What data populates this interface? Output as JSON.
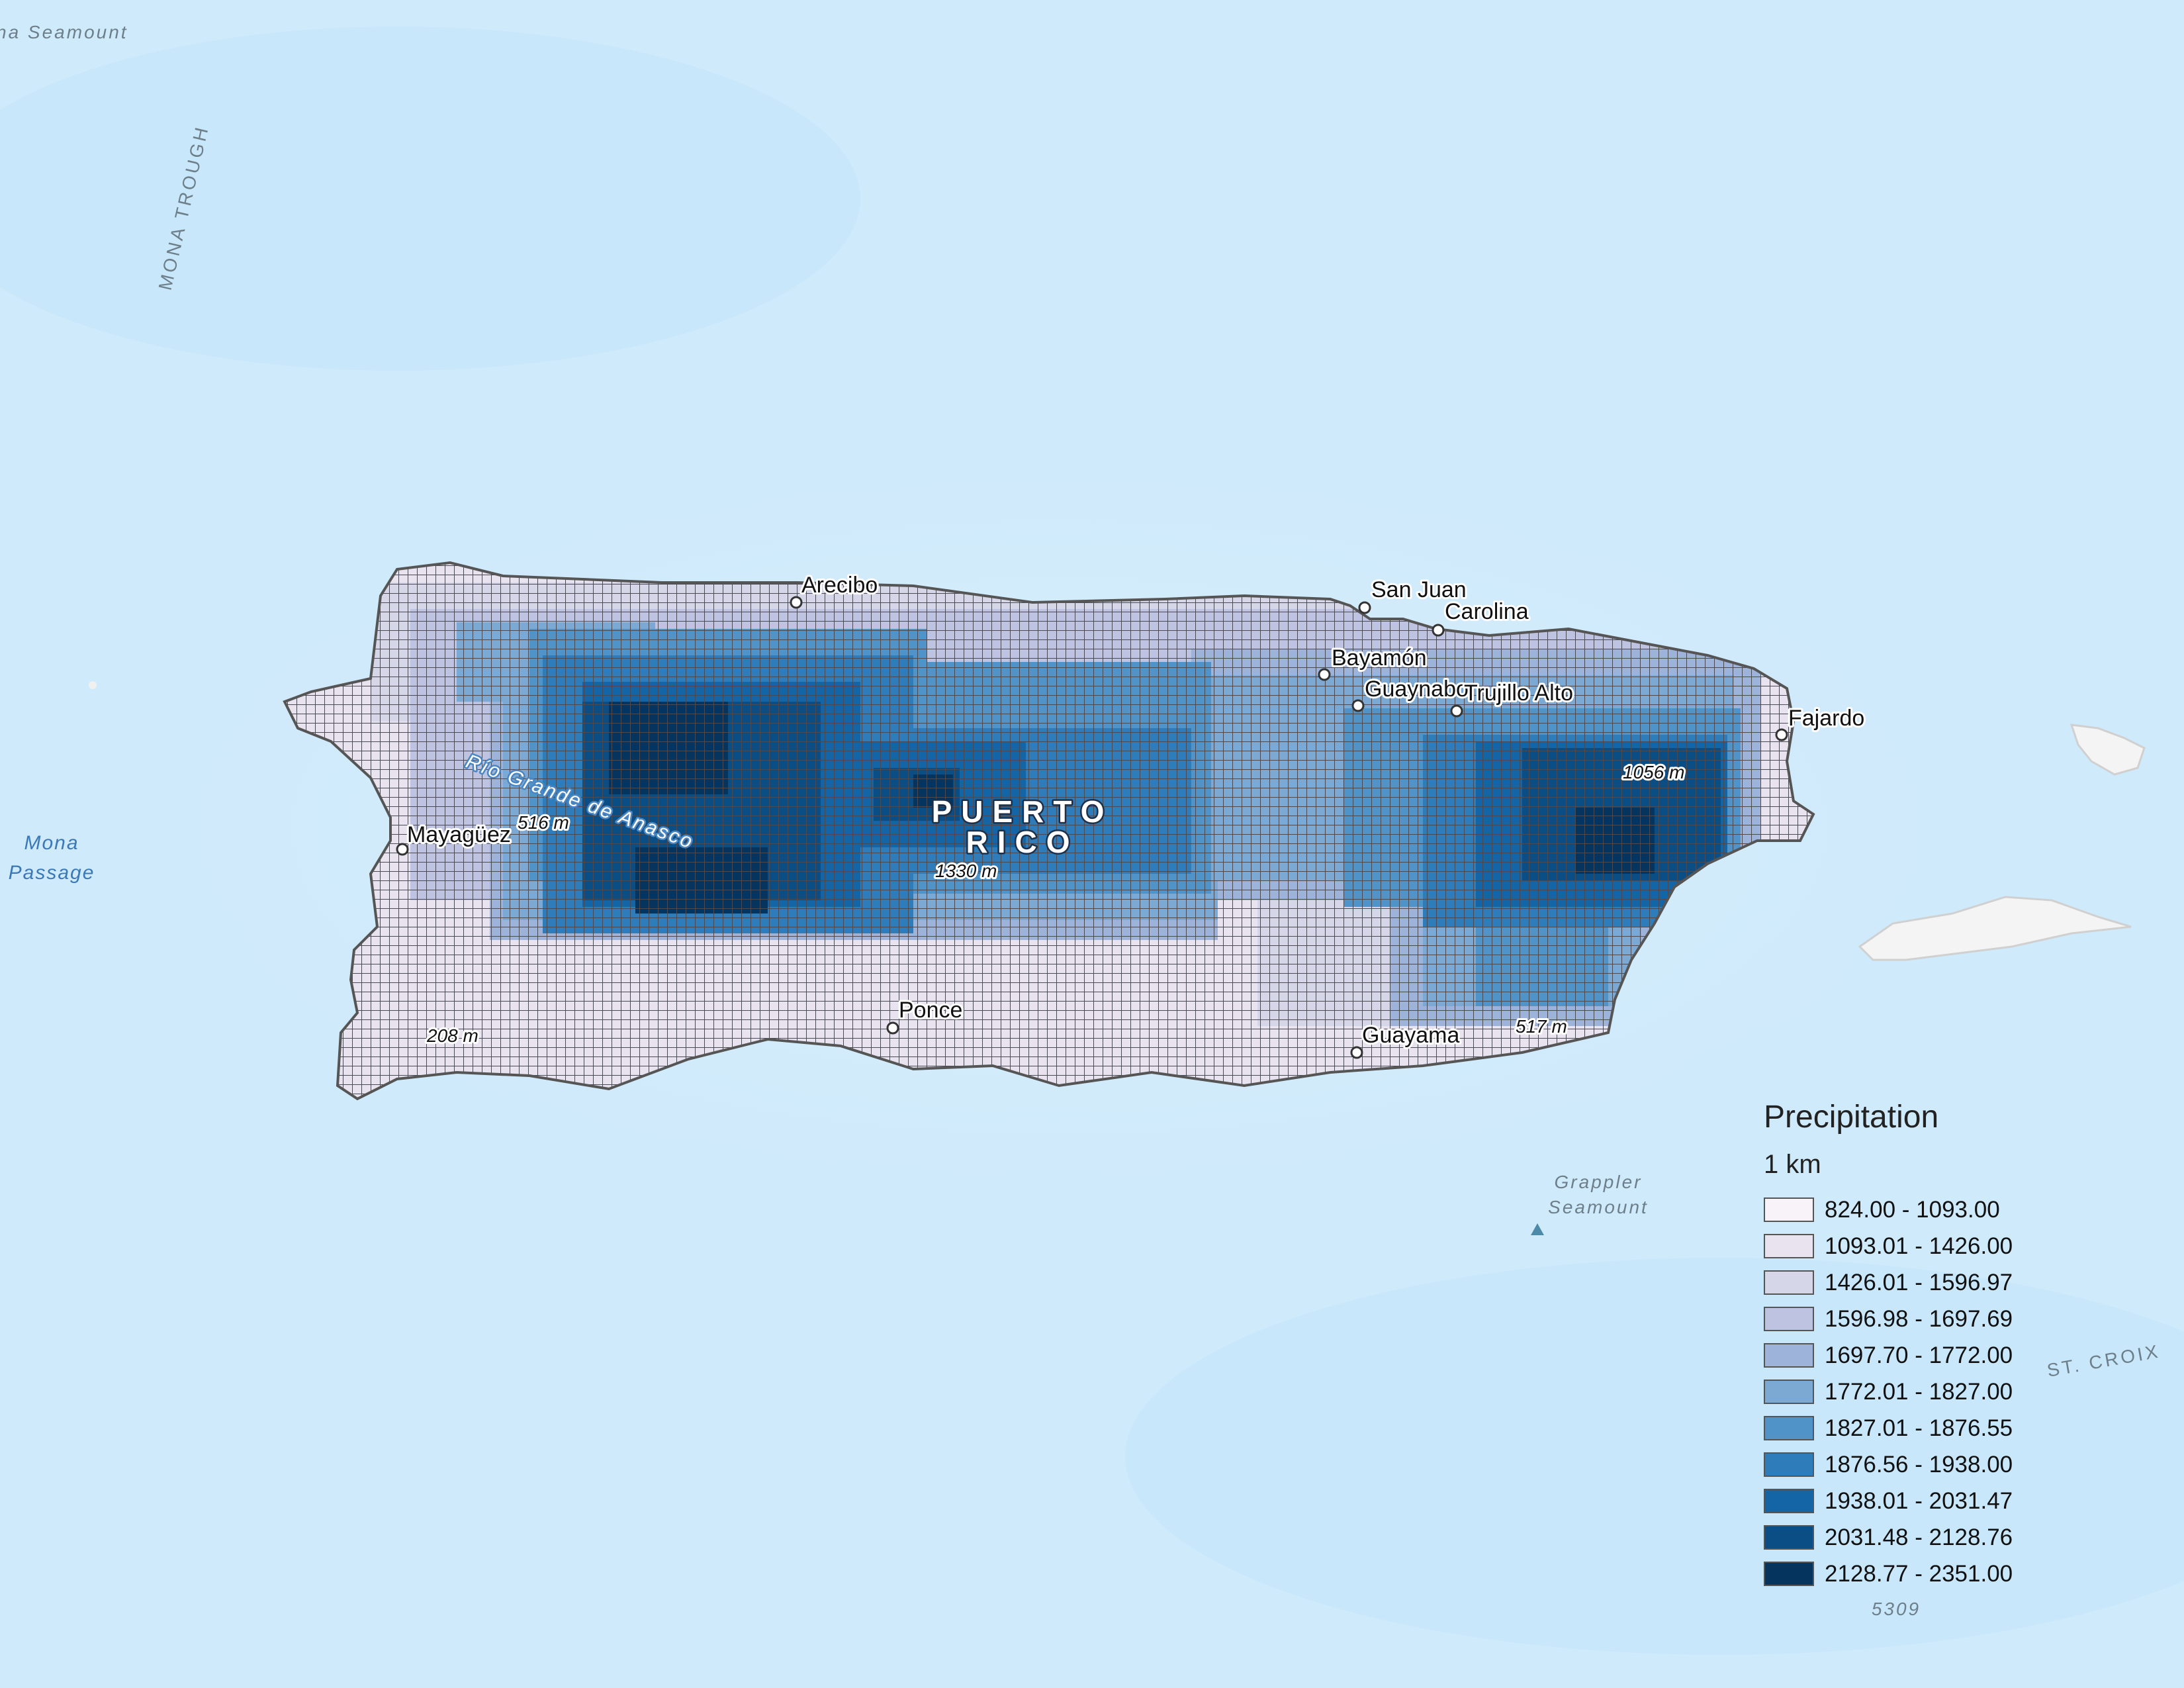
{
  "map": {
    "labels": {
      "puerto_rico": [
        "PUERTO",
        "RICO"
      ],
      "river": "Río Grande de Anasco",
      "ocean": [
        "na Seamount",
        "MONA TROUGH",
        "Mona",
        "Passage",
        "Grappler",
        "Seamount",
        "ST. CROIX",
        "5309"
      ],
      "cities": [
        "Arecibo",
        "San Juan",
        "Carolina",
        "Bayamón",
        "Guaynabo",
        "Trujillo Alto",
        "Fajardo",
        "Mayagüez",
        "Ponce",
        "Guayama"
      ],
      "elevations": [
        "516 m",
        "1330 m",
        "1056 m",
        "208 m",
        "517 m"
      ]
    },
    "colors": {
      "ocean": "#cfeafb",
      "grid_line": "#4a4a55",
      "coastline": "#555555"
    }
  },
  "legend": {
    "title": "Precipitation",
    "subtitle": "1 km",
    "classes": [
      {
        "label": "824.00 - 1093.00",
        "color": "#f7f3f8"
      },
      {
        "label": "1093.01 - 1426.00",
        "color": "#e8e3ef"
      },
      {
        "label": "1426.01 - 1596.97",
        "color": "#d5d6e8"
      },
      {
        "label": "1596.98 - 1697.69",
        "color": "#bdc3e0"
      },
      {
        "label": "1697.70 - 1772.00",
        "color": "#9db3da"
      },
      {
        "label": "1772.01 - 1827.00",
        "color": "#7ba9d3"
      },
      {
        "label": "1827.01 - 1876.55",
        "color": "#4f93c9"
      },
      {
        "label": "1876.56 - 1938.00",
        "color": "#2f7cba"
      },
      {
        "label": "1938.01 - 2031.47",
        "color": "#1465a6"
      },
      {
        "label": "2031.48 - 2128.76",
        "color": "#0b4e86"
      },
      {
        "label": "2128.77 - 2351.00",
        "color": "#05345e"
      }
    ]
  }
}
